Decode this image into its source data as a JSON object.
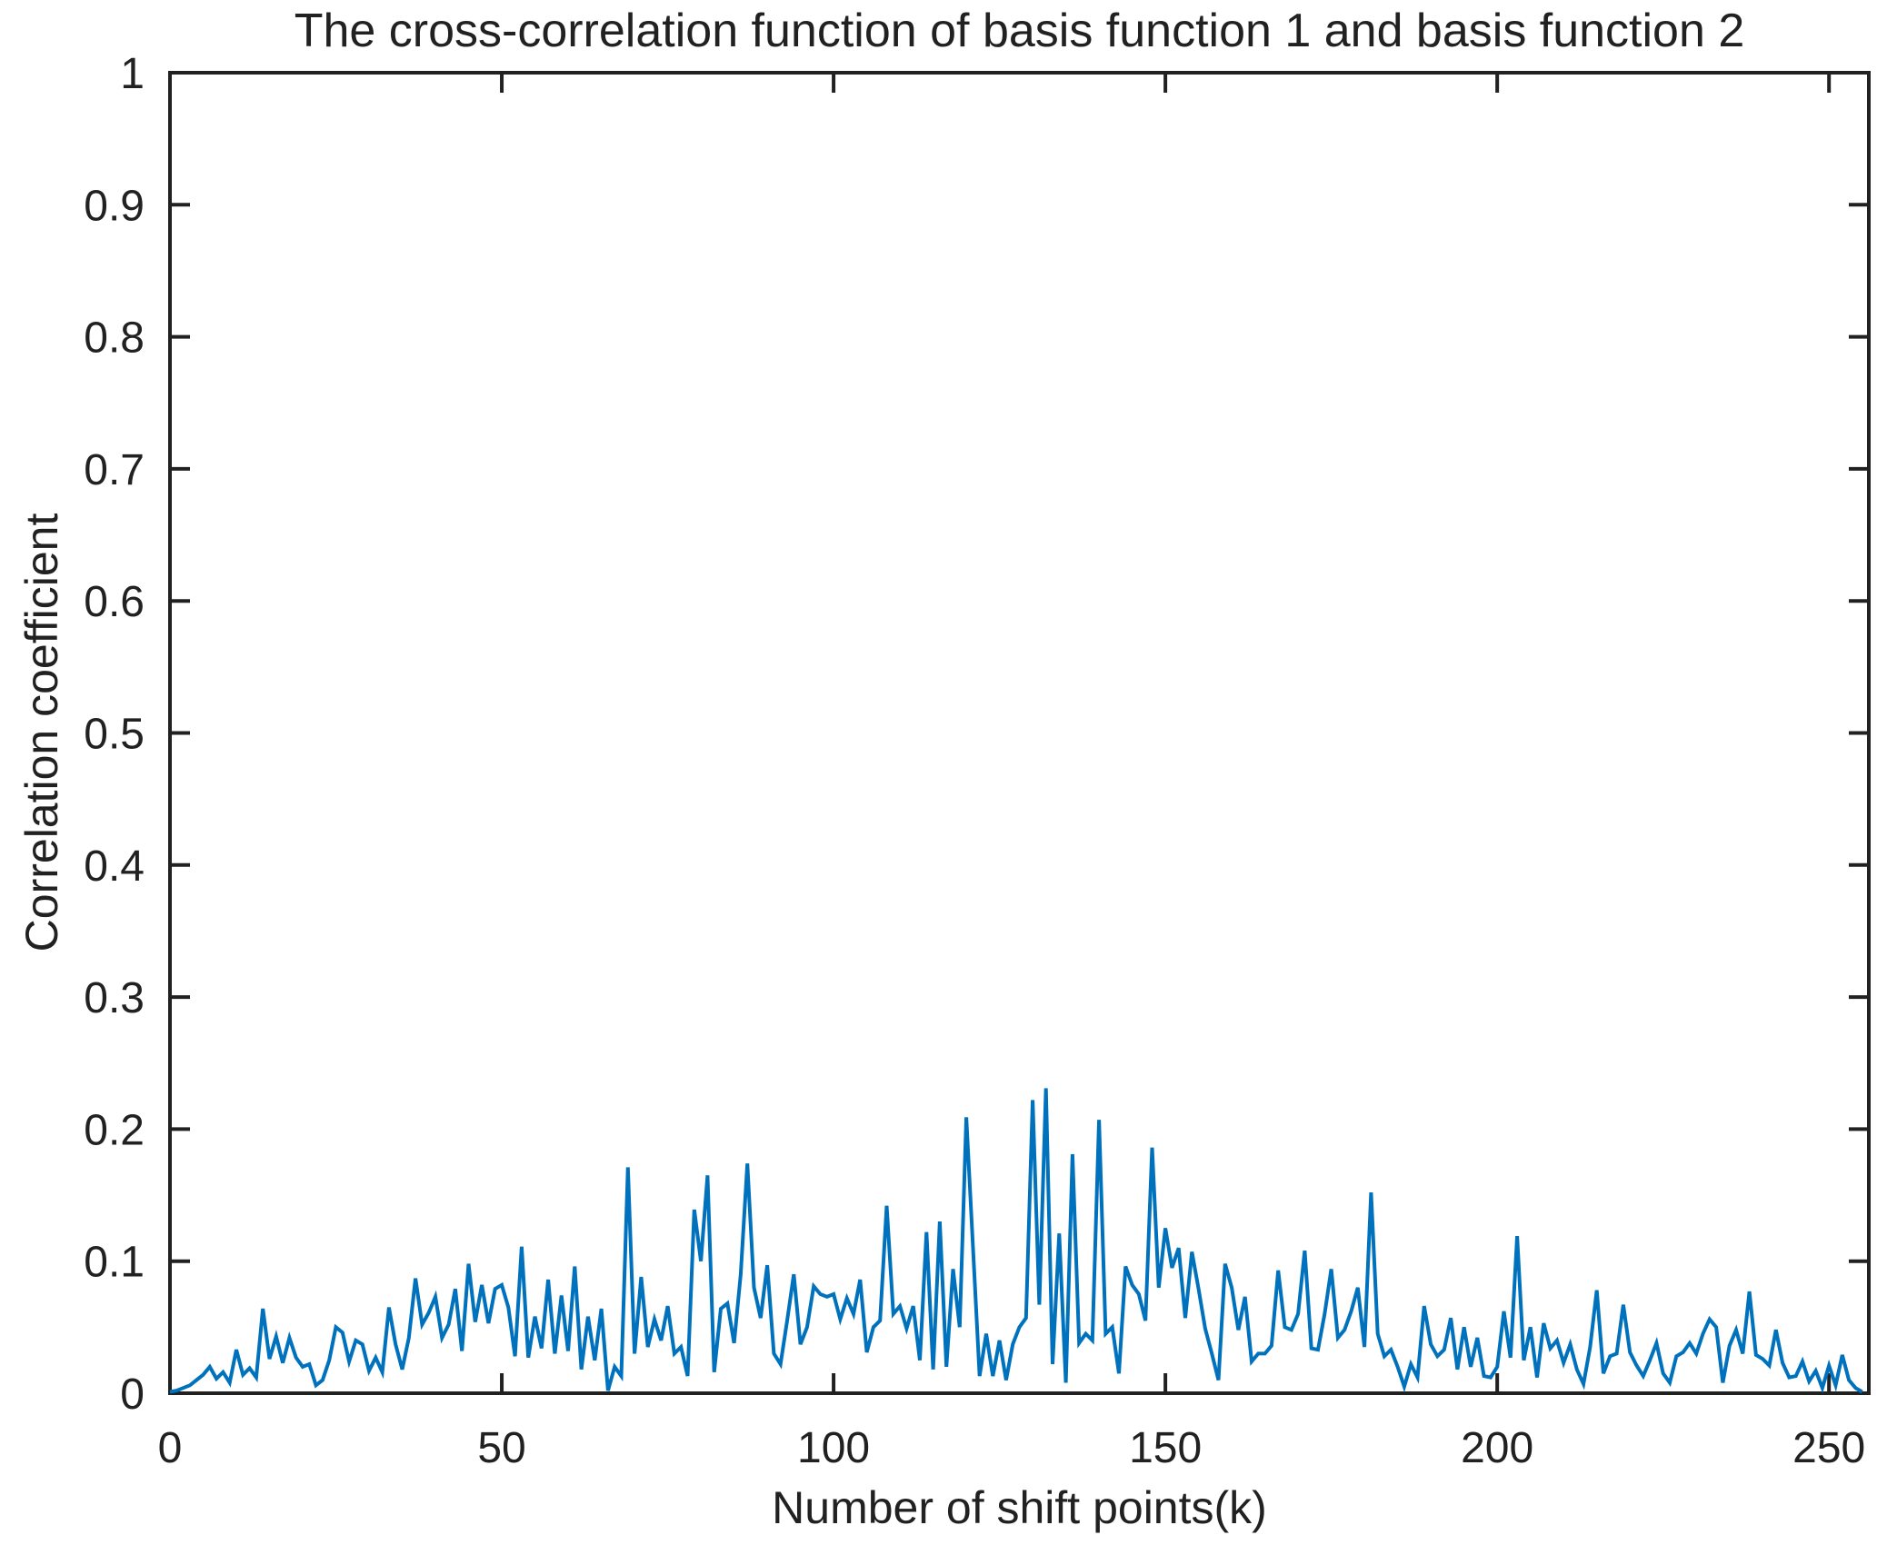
{
  "figure": {
    "background": "#ffffff"
  },
  "chart_data": {
    "type": "line",
    "title": "The cross-correlation function of basis function 1 and basis function 2",
    "xlabel": "Number of shift points(k)",
    "ylabel": "Correlation coefficient",
    "xlim": [
      0,
      256
    ],
    "ylim": [
      0,
      1
    ],
    "x_ticks": [
      0,
      50,
      100,
      150,
      200,
      250
    ],
    "y_ticks": [
      0,
      0.1,
      0.2,
      0.3,
      0.4,
      0.5,
      0.6,
      0.7,
      0.8,
      0.9,
      1
    ],
    "y_tick_labels": [
      "0",
      "0.1",
      "0.2",
      "0.3",
      "0.4",
      "0.5",
      "0.6",
      "0.7",
      "0.8",
      "0.9",
      "1"
    ],
    "grid": false,
    "legend": null,
    "box": true,
    "line_color": "#0072BD",
    "axis_color": "#212121",
    "x_start": 0,
    "x_step": 1,
    "n_points": 256,
    "values": [
      0.001,
      0.002,
      0.004,
      0.006,
      0.01,
      0.014,
      0.02,
      0.011,
      0.016,
      0.008,
      0.033,
      0.014,
      0.019,
      0.012,
      0.064,
      0.026,
      0.043,
      0.023,
      0.042,
      0.027,
      0.02,
      0.022,
      0.006,
      0.01,
      0.025,
      0.05,
      0.046,
      0.024,
      0.04,
      0.037,
      0.017,
      0.027,
      0.016,
      0.065,
      0.037,
      0.018,
      0.042,
      0.087,
      0.052,
      0.061,
      0.073,
      0.042,
      0.052,
      0.079,
      0.032,
      0.098,
      0.054,
      0.082,
      0.053,
      0.079,
      0.082,
      0.065,
      0.028,
      0.111,
      0.027,
      0.058,
      0.034,
      0.086,
      0.03,
      0.074,
      0.032,
      0.096,
      0.018,
      0.058,
      0.025,
      0.064,
      0.002,
      0.02,
      0.013,
      0.171,
      0.03,
      0.088,
      0.035,
      0.056,
      0.04,
      0.066,
      0.03,
      0.035,
      0.013,
      0.139,
      0.1,
      0.165,
      0.016,
      0.064,
      0.068,
      0.038,
      0.09,
      0.174,
      0.08,
      0.057,
      0.097,
      0.03,
      0.022,
      0.055,
      0.09,
      0.037,
      0.05,
      0.081,
      0.075,
      0.073,
      0.075,
      0.056,
      0.072,
      0.06,
      0.086,
      0.031,
      0.05,
      0.055,
      0.142,
      0.06,
      0.066,
      0.049,
      0.066,
      0.025,
      0.122,
      0.018,
      0.13,
      0.02,
      0.094,
      0.05,
      0.209,
      0.111,
      0.013,
      0.045,
      0.013,
      0.04,
      0.01,
      0.037,
      0.05,
      0.057,
      0.222,
      0.067,
      0.231,
      0.022,
      0.121,
      0.008,
      0.181,
      0.038,
      0.045,
      0.04,
      0.207,
      0.045,
      0.05,
      0.015,
      0.096,
      0.082,
      0.075,
      0.055,
      0.186,
      0.08,
      0.125,
      0.095,
      0.11,
      0.057,
      0.107,
      0.079,
      0.049,
      0.03,
      0.01,
      0.098,
      0.08,
      0.048,
      0.073,
      0.024,
      0.03,
      0.03,
      0.036,
      0.093,
      0.05,
      0.048,
      0.06,
      0.108,
      0.034,
      0.033,
      0.06,
      0.094,
      0.042,
      0.048,
      0.062,
      0.08,
      0.035,
      0.152,
      0.045,
      0.028,
      0.033,
      0.02,
      0.005,
      0.022,
      0.012,
      0.066,
      0.037,
      0.028,
      0.033,
      0.057,
      0.018,
      0.05,
      0.02,
      0.042,
      0.013,
      0.012,
      0.02,
      0.062,
      0.027,
      0.119,
      0.025,
      0.05,
      0.012,
      0.053,
      0.034,
      0.04,
      0.023,
      0.037,
      0.018,
      0.007,
      0.035,
      0.078,
      0.015,
      0.028,
      0.03,
      0.067,
      0.031,
      0.021,
      0.013,
      0.025,
      0.038,
      0.015,
      0.008,
      0.028,
      0.031,
      0.038,
      0.03,
      0.045,
      0.056,
      0.05,
      0.008,
      0.036,
      0.048,
      0.03,
      0.077,
      0.029,
      0.026,
      0.021,
      0.048,
      0.023,
      0.012,
      0.013,
      0.024,
      0.009,
      0.017,
      0.004,
      0.021,
      0.006,
      0.029,
      0.01,
      0.004,
      0.001
    ]
  }
}
